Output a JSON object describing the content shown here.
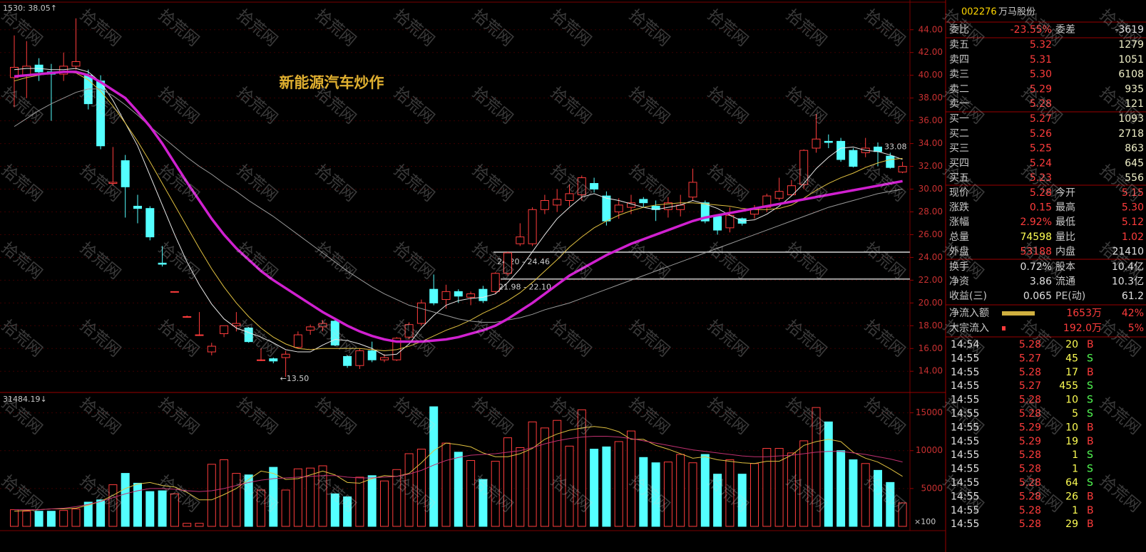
{
  "chart_data": [
    {
      "type": "candlestick",
      "title": "新能源汽车炒作",
      "corner_label": "1530: 38.05↑",
      "categories": [
        null,
        null,
        null,
        null,
        null,
        null,
        null,
        null,
        null,
        null,
        null,
        null,
        null,
        null,
        null,
        null,
        null,
        null,
        null,
        null,
        null,
        null,
        null,
        null,
        null,
        null,
        null,
        null,
        null,
        null,
        null,
        null,
        null,
        null,
        null,
        null,
        null,
        null,
        null,
        null,
        null,
        null,
        null,
        null,
        null,
        null,
        null,
        null,
        null,
        null,
        null,
        null,
        null,
        null,
        null,
        null,
        null,
        null,
        null,
        null,
        null,
        null,
        null,
        null,
        null,
        null,
        null,
        null,
        null,
        null,
        null,
        null,
        null
      ],
      "open": [
        39.8,
        40.0,
        40.9,
        40.3,
        40.1,
        40.8,
        40.0,
        39.5,
        30.5,
        32.5,
        28.5,
        28.3,
        23.5,
        21.0,
        18.8,
        17.2,
        15.7,
        17.3,
        18.0,
        17.8,
        15.0,
        15.1,
        15.2,
        16.1,
        17.6,
        17.9,
        18.4,
        15.3,
        14.5,
        15.8,
        15.0,
        15.0,
        17.0,
        18.2,
        21.2,
        20.3,
        21.0,
        20.5,
        21.2,
        21.0,
        22.6,
        25.2,
        25.2,
        28.2,
        28.6,
        29.0,
        29.5,
        30.5,
        29.4,
        28.0,
        28.4,
        29.1,
        28.5,
        28.2,
        28.2,
        29.3,
        28.8,
        27.6,
        26.6,
        27.4,
        27.8,
        28.4,
        29.2,
        29.5,
        30.4,
        33.6,
        34.2,
        34.2,
        33.4,
        33.2,
        33.7,
        32.9,
        31.5
      ],
      "close": [
        40.7,
        40.8,
        40.3,
        40.1,
        40.8,
        41.2,
        37.5,
        33.8,
        30.6,
        30.2,
        28.3,
        25.8,
        23.4,
        21.0,
        18.8,
        17.2,
        16.2,
        18.0,
        18.2,
        16.6,
        15.0,
        14.9,
        15.5,
        17.2,
        17.9,
        18.2,
        16.3,
        14.5,
        15.8,
        15.0,
        15.2,
        16.9,
        18.1,
        20.0,
        20.0,
        21.0,
        20.6,
        20.8,
        20.2,
        22.6,
        24.4,
        25.8,
        28.2,
        29.0,
        29.1,
        29.6,
        31.0,
        30.0,
        27.2,
        28.6,
        28.8,
        28.8,
        28.2,
        28.8,
        28.6,
        30.6,
        27.2,
        26.4,
        27.7,
        27.0,
        28.3,
        29.4,
        29.8,
        30.3,
        33.4,
        34.4,
        34.1,
        32.6,
        32.0,
        33.6,
        33.3,
        31.9,
        32.0
      ],
      "high": [
        43.5,
        43.0,
        41.5,
        41.0,
        42.0,
        45.0,
        40.5,
        40.0,
        33.7,
        33.0,
        29.5,
        28.5,
        25.0,
        21.0,
        18.9,
        19.2,
        16.5,
        18.0,
        19.2,
        17.9,
        16.0,
        15.2,
        15.8,
        17.5,
        18.1,
        18.5,
        18.5,
        15.4,
        16.0,
        16.6,
        15.5,
        17.0,
        18.3,
        20.3,
        22.5,
        21.6,
        21.2,
        21.0,
        21.5,
        22.7,
        24.5,
        27.0,
        28.4,
        29.5,
        30.0,
        30.4,
        31.2,
        31.0,
        29.8,
        29.2,
        29.5,
        29.3,
        29.0,
        29.3,
        29.5,
        31.8,
        29.0,
        27.8,
        28.4,
        27.5,
        28.6,
        29.6,
        31.0,
        30.8,
        33.5,
        36.6,
        34.8,
        34.5,
        33.6,
        34.5,
        34.1,
        33.2,
        32.4
      ],
      "low": [
        37.2,
        38.0,
        39.5,
        36.0,
        39.5,
        40.5,
        37.0,
        33.5,
        30.3,
        27.5,
        27.0,
        25.5,
        23.2,
        20.9,
        18.7,
        17.1,
        15.4,
        17.0,
        17.5,
        16.5,
        14.9,
        14.7,
        13.5,
        16.0,
        17.2,
        17.5,
        16.2,
        14.3,
        14.2,
        14.8,
        14.8,
        14.9,
        16.8,
        18.0,
        19.8,
        19.5,
        20.0,
        19.8,
        20.0,
        20.8,
        22.4,
        25.0,
        25.0,
        27.8,
        28.0,
        28.5,
        29.0,
        29.7,
        26.8,
        27.4,
        27.8,
        28.4,
        27.2,
        27.5,
        27.6,
        29.0,
        27.0,
        26.0,
        26.2,
        26.8,
        27.4,
        28.0,
        29.0,
        29.4,
        30.0,
        33.2,
        33.6,
        32.4,
        31.9,
        32.8,
        32.0,
        31.8,
        31.4
      ],
      "up_color": "#ff3c3c",
      "down_color": "#54ffff",
      "lines": [
        {
          "color": "#e8e8e8",
          "values": [
            40.5,
            40.6,
            40.6,
            40.5,
            40.5,
            40.6,
            40.3,
            39.4,
            37.8,
            35.8,
            33.8,
            31.2,
            28.6,
            26.0,
            23.6,
            21.6,
            19.9,
            18.6,
            17.8,
            17.4,
            17.0,
            16.5,
            15.9,
            15.7,
            15.7,
            16.3,
            16.8,
            16.7,
            16.4,
            16.0,
            15.4,
            15.5,
            16.4,
            17.8,
            18.9,
            19.8,
            20.2,
            20.4,
            20.5,
            20.8,
            21.8,
            23.0,
            24.5,
            26.0,
            27.4,
            28.4,
            29.3,
            29.6,
            29.2,
            29.0,
            28.7,
            28.4,
            28.2,
            28.4,
            28.6,
            29.0,
            28.7,
            28.3,
            27.7,
            27.2,
            27.3,
            27.8,
            28.5,
            29.4,
            30.5,
            31.8,
            32.8,
            33.6,
            33.7,
            33.4,
            33.3,
            33.0,
            32.6
          ]
        },
        {
          "color": "#e0c040",
          "values": [
            39.5,
            39.8,
            40.0,
            40.2,
            40.3,
            40.2,
            39.6,
            38.6,
            37.3,
            35.8,
            34.2,
            32.4,
            30.5,
            28.6,
            26.7,
            24.8,
            23.0,
            21.4,
            20.0,
            18.8,
            17.8,
            17.0,
            16.4,
            16.0,
            15.9,
            16.0,
            16.0,
            16.0,
            16.0,
            15.9,
            15.8,
            15.9,
            16.2,
            16.6,
            17.1,
            17.6,
            18.0,
            18.5,
            19.1,
            19.6,
            20.2,
            20.9,
            21.8,
            22.8,
            23.8,
            24.9,
            25.8,
            26.6,
            27.2,
            27.7,
            28.1,
            28.4,
            28.6,
            28.7,
            28.8,
            28.8,
            28.7,
            28.6,
            28.5,
            28.3,
            28.2,
            28.2,
            28.3,
            28.6,
            29.2,
            29.9,
            30.5,
            31.0,
            31.4,
            31.9,
            32.3,
            32.6,
            32.7
          ]
        },
        {
          "color": "#9a9a9a",
          "values": [
            35.5,
            36.2,
            36.9,
            37.5,
            38.0,
            38.5,
            38.8,
            38.8,
            38.2,
            37.4,
            36.5,
            35.5,
            34.6,
            33.7,
            32.8,
            32.0,
            31.3,
            30.5,
            29.8,
            29.0,
            28.3,
            27.6,
            26.8,
            26.0,
            25.2,
            24.4,
            23.6,
            22.8,
            22.1,
            21.4,
            20.8,
            20.3,
            19.8,
            19.5,
            19.2,
            18.9,
            18.6,
            18.4,
            18.3,
            18.3,
            18.5,
            18.7,
            19.0,
            19.4,
            19.7,
            20.0,
            20.4,
            20.8,
            21.2,
            21.6,
            22.0,
            22.4,
            22.8,
            23.2,
            23.6,
            24.0,
            24.4,
            24.8,
            25.2,
            25.6,
            26.0,
            26.4,
            26.8,
            27.2,
            27.6,
            28.0,
            28.4,
            28.7,
            29.0,
            29.3,
            29.6,
            29.8,
            30.0
          ]
        },
        {
          "color": "#d020d0",
          "values": [
            39.9,
            40.0,
            40.1,
            40.2,
            40.3,
            40.3,
            40.0,
            39.4,
            38.7,
            38.0,
            36.8,
            35.5,
            34.0,
            32.3,
            30.6,
            29.0,
            27.4,
            26.0,
            24.8,
            23.8,
            22.8,
            22.0,
            21.3,
            20.6,
            19.9,
            19.2,
            18.6,
            18.0,
            17.5,
            17.1,
            16.8,
            16.6,
            16.6,
            16.6,
            16.7,
            16.8,
            17.0,
            17.3,
            17.6,
            18.0,
            18.6,
            19.3,
            20.0,
            20.8,
            21.6,
            22.4,
            23.0,
            23.6,
            24.2,
            24.7,
            25.2,
            25.6,
            26.0,
            26.4,
            26.8,
            27.2,
            27.5,
            27.7,
            27.9,
            28.1,
            28.3,
            28.5,
            28.7,
            28.9,
            29.1,
            29.3,
            29.5,
            29.7,
            29.9,
            30.1,
            30.3,
            30.5,
            30.7
          ]
        }
      ],
      "low_marker": {
        "value": 13.5,
        "label": "←13.50"
      },
      "bands": [
        {
          "low": 24.2,
          "high": 24.46,
          "label": "24.20 - 24.46"
        },
        {
          "low": 21.98,
          "high": 22.1,
          "label": "21.98 - 22.10"
        }
      ],
      "last_label": 33.08,
      "ylim": [
        12.2,
        46.3
      ],
      "yticks": [
        {
          "value": 14,
          "label": "14.00"
        },
        {
          "value": 16,
          "label": "16.00"
        },
        {
          "value": 18,
          "label": "18.00"
        },
        {
          "value": 20,
          "label": "20.00"
        },
        {
          "value": 22,
          "label": "22.00"
        },
        {
          "value": 24,
          "label": "24.00"
        },
        {
          "value": 26,
          "label": "26.00"
        },
        {
          "value": 28,
          "label": "28.00"
        },
        {
          "value": 30,
          "label": "30.00"
        },
        {
          "value": 32,
          "label": "32.00"
        },
        {
          "value": 34,
          "label": "34.00"
        },
        {
          "value": 36,
          "label": "36.00"
        },
        {
          "value": 38,
          "label": "38.00"
        },
        {
          "value": 40,
          "label": "40.00"
        },
        {
          "value": 42,
          "label": "42.00"
        },
        {
          "value": 44,
          "label": "44.00"
        }
      ],
      "grid": true
    },
    {
      "type": "bar",
      "corner_label": "31484.19↓",
      "unit_label": "×100",
      "values": [
        2200,
        2000,
        2000,
        2000,
        2100,
        2300,
        3200,
        3500,
        5500,
        7000,
        5700,
        4600,
        4700,
        4300,
        400,
        400,
        8200,
        8800,
        7000,
        6800,
        4800,
        7800,
        4800,
        7600,
        7700,
        8000,
        4300,
        3900,
        6500,
        6700,
        6000,
        7500,
        9600,
        10200,
        15800,
        11000,
        9800,
        8700,
        6200,
        8600,
        11700,
        10400,
        13800,
        13000,
        14000,
        10600,
        15400,
        10200,
        10500,
        11200,
        12600,
        9100,
        8400,
        8500,
        9500,
        8400,
        9500,
        6900,
        8800,
        6900,
        8300,
        10300,
        10300,
        9700,
        11300,
        15700,
        13800,
        10000,
        8800,
        8300,
        7400,
        5800,
        3100
      ],
      "lines": [
        {
          "color": "#e0c040",
          "values": [
            2000,
            2100,
            2200,
            2300,
            2300,
            2400,
            2800,
            3300,
            4100,
            5000,
            5600,
            5800,
            5400,
            5200,
            4500,
            3500,
            3500,
            4200,
            5000,
            6200,
            7300,
            7000,
            6200,
            6300,
            6800,
            7300,
            6800,
            5800,
            5700,
            6300,
            6700,
            6600,
            7000,
            8400,
            10000,
            11000,
            10800,
            10500,
            9700,
            9200,
            9200,
            9600,
            10300,
            11500,
            12200,
            12700,
            13000,
            13200,
            13000,
            12500,
            11500,
            11500,
            10700,
            10200,
            9600,
            9000,
            9200,
            8800,
            8600,
            8400,
            8300,
            8600,
            8600,
            9400,
            10700,
            11200,
            11500,
            11200,
            9800,
            9000,
            8500,
            7600,
            6600
          ]
        },
        {
          "color": "#c03070",
          "values": [
            2200,
            2200,
            2200,
            2300,
            2400,
            2600,
            2900,
            3300,
            3800,
            4300,
            4700,
            5000,
            5000,
            4900,
            4700,
            4600,
            4700,
            5000,
            5400,
            5800,
            6100,
            6300,
            6400,
            6500,
            6600,
            6700,
            6700,
            6500,
            6400,
            6400,
            6500,
            6600,
            6900,
            7400,
            8100,
            8700,
            9100,
            9400,
            9500,
            9600,
            9800,
            10000,
            10400,
            10900,
            11300,
            11600,
            11800,
            11900,
            11900,
            11800,
            11600,
            11300,
            11000,
            10700,
            10400,
            10100,
            9900,
            9700,
            9500,
            9300,
            9200,
            9200,
            9300,
            9400,
            9600,
            9800,
            9900,
            9900,
            9700,
            9500,
            9200,
            8900,
            8500
          ]
        }
      ],
      "ylim": [
        0,
        17500
      ],
      "yticks": [
        5000,
        10000,
        15000
      ]
    }
  ],
  "watermark": "拾荒网",
  "panel": {
    "code": "002276",
    "name": "万马股份",
    "ratio": [
      "委比",
      "-23.55%",
      "委差",
      "-3619"
    ],
    "book": [
      [
        "卖五",
        "5.32",
        "1279"
      ],
      [
        "卖四",
        "5.31",
        "1051"
      ],
      [
        "卖三",
        "5.30",
        "6108"
      ],
      [
        "卖二",
        "5.29",
        "935"
      ],
      [
        "卖一",
        "5.28",
        "121"
      ],
      [
        "买一",
        "5.27",
        "1093"
      ],
      [
        "买二",
        "5.26",
        "2718"
      ],
      [
        "买三",
        "5.25",
        "863"
      ],
      [
        "买四",
        "5.24",
        "645"
      ],
      [
        "买五",
        "5.23",
        "556"
      ]
    ],
    "quote": [
      [
        "现价",
        "5.28",
        "今开",
        "5.15"
      ],
      [
        "涨跌",
        "0.15",
        "最高",
        "5.30"
      ],
      [
        "涨幅",
        "2.92%",
        "最低",
        "5.12"
      ],
      [
        "总量",
        "74598",
        "量比",
        "1.02"
      ],
      [
        "外盘",
        "53188",
        "内盘",
        "21410"
      ],
      [
        "换手",
        "0.72%",
        "股本",
        "10.4亿"
      ],
      [
        "净资",
        "3.86",
        "流通",
        "10.3亿"
      ],
      [
        "收益(三)",
        "0.065",
        "PE(动)",
        "61.2"
      ]
    ],
    "flows": [
      [
        "净流入额",
        "1653万",
        "42%"
      ],
      [
        "大宗流入",
        "192.0万",
        "5%"
      ]
    ],
    "ticks": [
      [
        "14:54",
        "5.28",
        "20",
        "B"
      ],
      [
        "14:55",
        "5.27",
        "45",
        "S"
      ],
      [
        "14:55",
        "5.28",
        "17",
        "B"
      ],
      [
        "14:55",
        "5.27",
        "455",
        "S"
      ],
      [
        "14:55",
        "5.28",
        "10",
        "S"
      ],
      [
        "14:55",
        "5.28",
        "5",
        "S"
      ],
      [
        "14:55",
        "5.29",
        "10",
        "B"
      ],
      [
        "14:55",
        "5.29",
        "19",
        "B"
      ],
      [
        "14:55",
        "5.28",
        "1",
        "S"
      ],
      [
        "14:55",
        "5.28",
        "1",
        "S"
      ],
      [
        "14:55",
        "5.28",
        "64",
        "S"
      ],
      [
        "14:55",
        "5.28",
        "26",
        "B"
      ],
      [
        "14:55",
        "5.28",
        "1",
        "B"
      ],
      [
        "14:55",
        "5.28",
        "29",
        "B"
      ]
    ],
    "side_colors": {
      "B": "#ff3c3c",
      "S": "#54ff54"
    }
  }
}
